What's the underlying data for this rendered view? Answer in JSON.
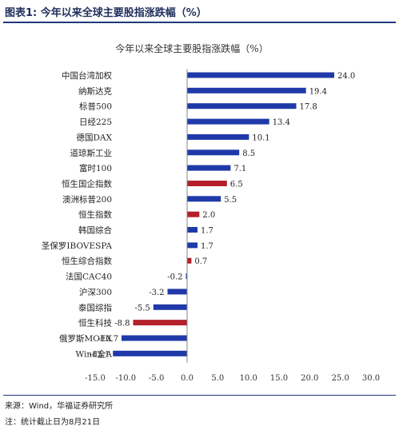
{
  "figure_label": "图表1: 今年以来全球主要股指涨跌幅（%）",
  "source": "来源：Wind，华福证券研究所",
  "note": "注：统计截止日为8月21日",
  "colors": {
    "blue": "#1f3aa8",
    "red": "#b3202a",
    "rule": "#1f3a7a"
  },
  "chart_data": {
    "type": "bar",
    "orientation": "horizontal",
    "title": "今年以来全球主要股指涨跌幅（%）",
    "categories": [
      "中国台湾加权",
      "纳斯达克",
      "标普500",
      "日经225",
      "德国DAX",
      "道琼斯工业",
      "富时100",
      "恒生国企指数",
      "澳洲标普200",
      "恒生指数",
      "韩国综合",
      "圣保罗IBOVESPA",
      "恒生综合指数",
      "法国CAC40",
      "沪深300",
      "泰国综指",
      "恒生科技",
      "俄罗斯MOEX",
      "Wind全A"
    ],
    "values": [
      24.0,
      19.4,
      17.8,
      13.4,
      10.1,
      8.5,
      7.1,
      6.5,
      5.5,
      2.0,
      1.7,
      1.7,
      0.7,
      -0.2,
      -3.2,
      -5.5,
      -8.8,
      -10.7,
      -12.1
    ],
    "value_labels": [
      "24.0",
      "19.4",
      "17.8",
      "13.4",
      "10.1",
      "8.5",
      "7.1",
      "6.5",
      "5.5",
      "2.0",
      "1.7",
      "1.7",
      "0.7",
      "-0.2",
      "-3.2",
      "-5.5",
      "-8.8",
      "-10.7",
      "-12.1"
    ],
    "highlight": [
      false,
      false,
      false,
      false,
      false,
      false,
      false,
      true,
      false,
      true,
      false,
      false,
      true,
      false,
      false,
      false,
      true,
      false,
      false
    ],
    "xlim": [
      -15.0,
      30.0
    ],
    "xticks": [
      -15.0,
      -10.0,
      -5.0,
      0.0,
      5.0,
      10.0,
      15.0,
      20.0,
      25.0,
      30.0
    ],
    "xtick_labels": [
      "-15.0",
      "-10.0",
      "-5.0",
      "0.0",
      "5.0",
      "10.0",
      "15.0",
      "20.0",
      "25.0",
      "30.0"
    ],
    "grid": false,
    "legend": "none"
  }
}
